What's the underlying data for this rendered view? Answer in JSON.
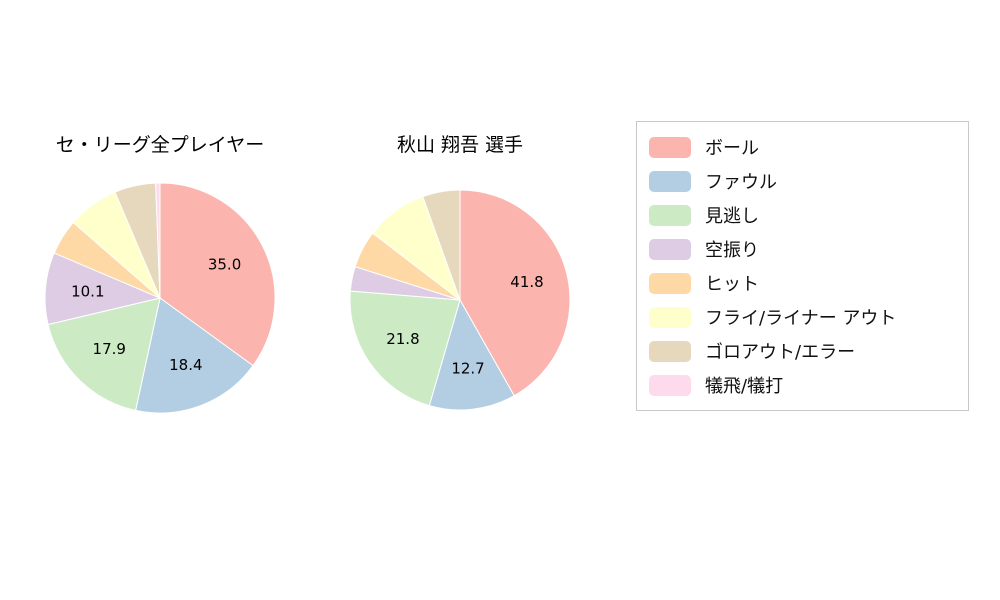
{
  "figure": {
    "background_color": "#ffffff"
  },
  "legend": {
    "border_color": "#c9c9c9",
    "position": "right",
    "items": [
      {
        "key": "ball",
        "label": "ボール",
        "color": "#fbb4ae"
      },
      {
        "key": "foul",
        "label": "ファウル",
        "color": "#b3cde3"
      },
      {
        "key": "called-strike",
        "label": "見逃し",
        "color": "#ccebc5"
      },
      {
        "key": "swinging-strike",
        "label": "空振り",
        "color": "#decbe4"
      },
      {
        "key": "hit",
        "label": "ヒット",
        "color": "#fed9a6"
      },
      {
        "key": "fly-liner-out",
        "label": "フライ/ライナー アウト",
        "color": "#ffffcc"
      },
      {
        "key": "ground-out-error",
        "label": "ゴロアウト/エラー",
        "color": "#e5d8bd"
      },
      {
        "key": "sac-fly-bunt",
        "label": "犠飛/犠打",
        "color": "#fddaec"
      }
    ]
  },
  "chart_data": [
    {
      "type": "pie",
      "title": "セ・リーグ全プレイヤー",
      "categories": [
        "ボール",
        "ファウル",
        "見逃し",
        "空振り",
        "ヒット",
        "フライ/ライナー アウト",
        "ゴロアウト/エラー",
        "犠飛/犠打"
      ],
      "values": [
        35.0,
        18.4,
        17.9,
        10.1,
        5.0,
        7.2,
        5.8,
        0.6
      ],
      "colors": [
        "#fbb4ae",
        "#b3cde3",
        "#ccebc5",
        "#decbe4",
        "#fed9a6",
        "#ffffcc",
        "#e5d8bd",
        "#fddaec"
      ],
      "value_labels_shown": [
        "35.0",
        "18.4",
        "17.9",
        "10.1"
      ],
      "label_min_pct": 10,
      "start_angle": "top",
      "direction": "clockwise",
      "radius_px": 115
    },
    {
      "type": "pie",
      "title": "秋山 翔吾  選手",
      "categories": [
        "ボール",
        "ファウル",
        "見逃し",
        "空振り",
        "ヒット",
        "フライ/ライナー アウト",
        "ゴロアウト/エラー",
        "犠飛/犠打"
      ],
      "values": [
        41.8,
        12.7,
        21.8,
        3.6,
        5.5,
        9.1,
        5.5,
        0.0
      ],
      "colors": [
        "#fbb4ae",
        "#b3cde3",
        "#ccebc5",
        "#decbe4",
        "#fed9a6",
        "#ffffcc",
        "#e5d8bd",
        "#fddaec"
      ],
      "value_labels_shown": [
        "41.8",
        "12.7",
        "21.8"
      ],
      "label_min_pct": 10,
      "start_angle": "top",
      "direction": "clockwise",
      "radius_px": 110
    }
  ]
}
